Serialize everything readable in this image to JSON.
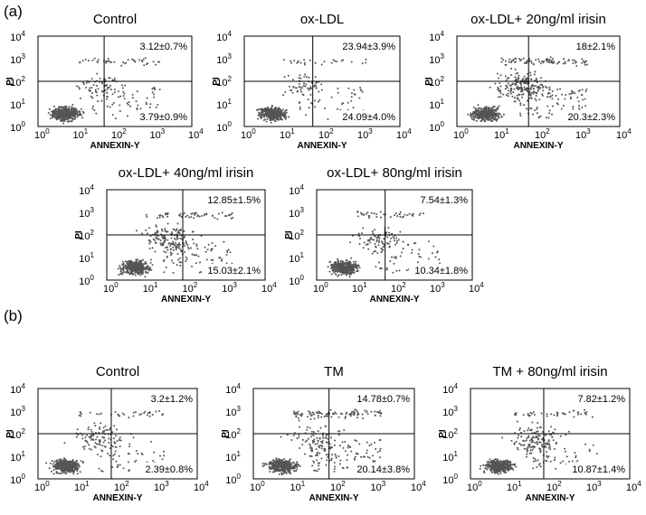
{
  "figure": {
    "sections": [
      {
        "label": "(a)",
        "panels": [
          {
            "title": "Control",
            "upper_right": "3.12±0.7%",
            "lower_right": "3.79±0.9%"
          },
          {
            "title": "ox-LDL",
            "upper_right": "23.94±3.9%",
            "lower_right": "24.09±4.0%"
          },
          {
            "title": "ox-LDL+ 20ng/ml irisin",
            "upper_right": "18±2.1%",
            "lower_right": "20.3±2.3%"
          },
          {
            "title": "ox-LDL+ 40ng/ml irisin",
            "upper_right": "12.85±1.5%",
            "lower_right": "15.03±2.1%"
          },
          {
            "title": "ox-LDL+ 80ng/ml irisin",
            "upper_right": "7.54±1.3%",
            "lower_right": "10.34±1.8%"
          }
        ]
      },
      {
        "label": "(b)",
        "panels": [
          {
            "title": "Control",
            "upper_right": "3.2±1.2%",
            "lower_right": "2.39±0.8%"
          },
          {
            "title": "TM",
            "upper_right": "14.78±0.7%",
            "lower_right": "20.14±3.8%"
          },
          {
            "title": "TM + 80ng/ml irisin",
            "upper_right": "7.82±1.2%",
            "lower_right": "10.87±1.4%"
          }
        ]
      }
    ],
    "axes": {
      "x_label": "ANNEXIN-Y",
      "y_label": "PI",
      "ticks": [
        {
          "base": "10",
          "exp": "0"
        },
        {
          "base": "10",
          "exp": "1"
        },
        {
          "base": "10",
          "exp": "2"
        },
        {
          "base": "10",
          "exp": "3"
        },
        {
          "base": "10",
          "exp": "4"
        }
      ]
    }
  }
}
